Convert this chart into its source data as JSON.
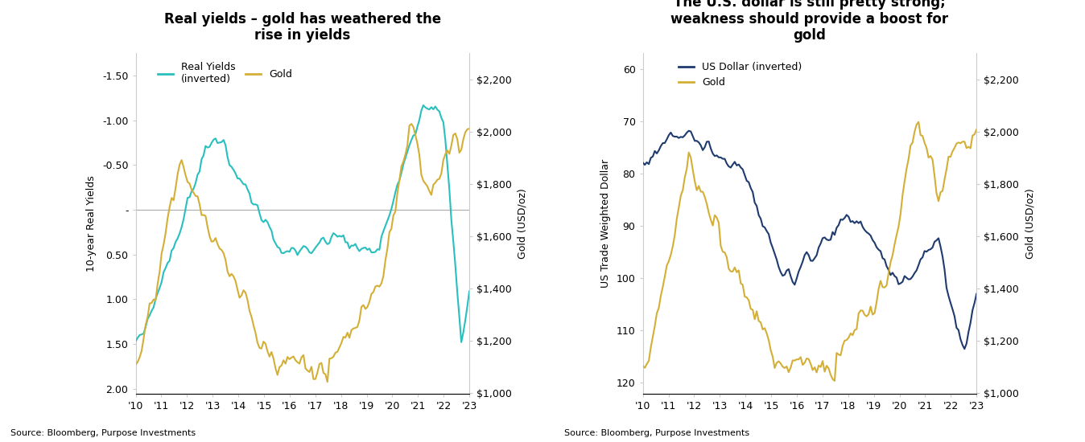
{
  "chart1": {
    "title": "Real yields – gold has weathered the\nrise in yields",
    "ylabel_left": "10-year Real Yields",
    "ylabel_right": "Gold (USD/oz)",
    "source": "Source: Bloomberg, Purpose Investments",
    "legend": [
      "Real Yields\n(inverted)",
      "Gold"
    ],
    "legend_colors": [
      "#2abfbf",
      "#d4af37"
    ],
    "ylim_left": [
      2.05,
      -1.75
    ],
    "ylim_right": [
      1000,
      2300
    ],
    "yticks_left": [
      2.0,
      1.5,
      1.0,
      0.5,
      0.0,
      -0.5,
      -1.0,
      -1.5
    ],
    "ytick_labels_left": [
      "2.00",
      "1.50",
      "1.00",
      "0.50",
      "-",
      "-0.50",
      "-1.00",
      "-1.50"
    ],
    "yticks_right": [
      1000,
      1200,
      1400,
      1600,
      1800,
      2000,
      2200
    ],
    "ytick_labels_right": [
      "$1,000",
      "$1,200",
      "$1,400",
      "$1,600",
      "$1,800",
      "$2,000",
      "$2,200"
    ],
    "xtick_labels": [
      "'10",
      "'11",
      "'12",
      "'13",
      "'14",
      "'15",
      "'16",
      "'17",
      "'18",
      "'19",
      "'20",
      "'21",
      "'22",
      "'23"
    ],
    "real_yields_color": "#2abfbf",
    "gold_color": "#d4af37"
  },
  "chart2": {
    "title": "The U.S. dollar is still pretty strong;\nweakness should provide a boost for\ngold",
    "ylabel_left": "US Trade Weighted Dollar",
    "ylabel_right": "Gold (USD/oz)",
    "source": "Source: Bloomberg, Purpose Investments",
    "legend": [
      "US Dollar (inverted)",
      "Gold"
    ],
    "legend_colors": [
      "#1f3b6e",
      "#d4af37"
    ],
    "ylim_left": [
      122,
      57
    ],
    "ylim_right": [
      1000,
      2300
    ],
    "yticks_left": [
      120,
      110,
      100,
      90,
      80,
      70,
      60
    ],
    "ytick_labels_left": [
      "120",
      "110",
      "100",
      "90",
      "80",
      "70",
      "60"
    ],
    "yticks_right": [
      1000,
      1200,
      1400,
      1600,
      1800,
      2000,
      2200
    ],
    "ytick_labels_right": [
      "$1,000",
      "$1,200",
      "$1,400",
      "$1,600",
      "$1,800",
      "$2,000",
      "$2,200"
    ],
    "xtick_labels": [
      "'10",
      "'11",
      "'12",
      "'13",
      "'14",
      "'15",
      "'16",
      "'17",
      "'18",
      "'19",
      "'20",
      "'21",
      "'22",
      "'23"
    ],
    "dollar_color": "#1f3b6e",
    "gold_color": "#d4af37"
  }
}
